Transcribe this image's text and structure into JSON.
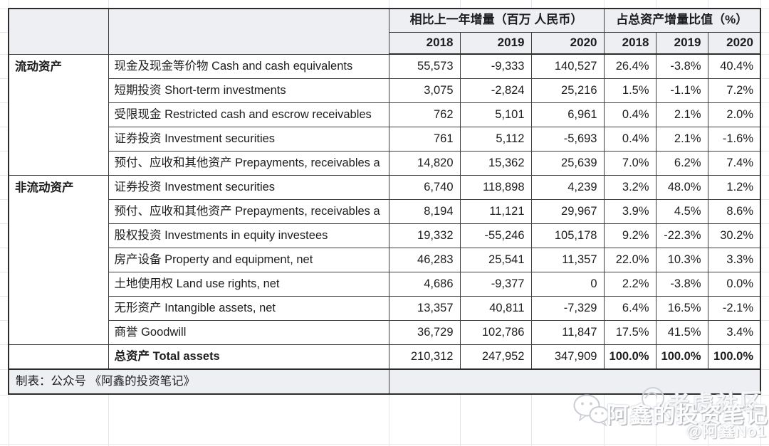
{
  "chart_data": {
    "type": "table",
    "column_groups": [
      {
        "label": "相比上一年增量（百万 人民币）",
        "span": 3
      },
      {
        "label": "占总资产增量比值（%）",
        "span": 3
      }
    ],
    "year_headers": [
      "2018",
      "2019",
      "2020",
      "2018",
      "2019",
      "2020"
    ],
    "sections": [
      {
        "name": "流动资产",
        "rows": [
          {
            "label": "现金及现金等价物 Cash and cash equivalents",
            "values": [
              "55,573",
              "-9,333",
              "140,527",
              "26.4%",
              "-3.8%",
              "40.4%"
            ]
          },
          {
            "label": "短期投资 Short-term investments",
            "values": [
              "3,075",
              "-2,824",
              "25,216",
              "1.5%",
              "-1.1%",
              "7.2%"
            ]
          },
          {
            "label": "受限现金 Restricted cash and escrow receivables",
            "values": [
              "762",
              "5,101",
              "6,961",
              "0.4%",
              "2.1%",
              "2.0%"
            ]
          },
          {
            "label": "证券投资 Investment securities",
            "values": [
              "761",
              "5,112",
              "-5,693",
              "0.4%",
              "2.1%",
              "-1.6%"
            ]
          },
          {
            "label": "预付、应收和其他资产 Prepayments, receivables a",
            "values": [
              "14,820",
              "15,362",
              "25,639",
              "7.0%",
              "6.2%",
              "7.4%"
            ]
          }
        ]
      },
      {
        "name": "非流动资产",
        "rows": [
          {
            "label": "证券投资 Investment securities",
            "values": [
              "6,740",
              "118,898",
              "4,239",
              "3.2%",
              "48.0%",
              "1.2%"
            ]
          },
          {
            "label": "预付、应收和其他资产 Prepayments, receivables a",
            "values": [
              "8,194",
              "11,121",
              "29,967",
              "3.9%",
              "4.5%",
              "8.6%"
            ]
          },
          {
            "label": "股权投资 Investments in equity investees",
            "values": [
              "19,332",
              "-55,246",
              "105,178",
              "9.2%",
              "-22.3%",
              "30.2%"
            ]
          },
          {
            "label": "房产设备 Property and equipment, net",
            "values": [
              "46,283",
              "25,541",
              "11,357",
              "22.0%",
              "10.3%",
              "3.3%"
            ]
          },
          {
            "label": "土地使用权 Land use rights, net",
            "values": [
              "4,686",
              "-9,377",
              "0",
              "2.2%",
              "-3.8%",
              "0.0%"
            ]
          },
          {
            "label": "无形资产 Intangible assets, net",
            "values": [
              "13,357",
              "40,811",
              "-7,329",
              "6.4%",
              "16.5%",
              "-2.1%"
            ]
          },
          {
            "label": "商誉 Goodwill",
            "values": [
              "36,729",
              "102,786",
              "11,847",
              "17.5%",
              "41.5%",
              "3.4%"
            ]
          }
        ]
      }
    ],
    "total": {
      "label": "总资产 Total assets",
      "values": [
        "210,312",
        "247,952",
        "347,909",
        "100.0%",
        "100.0%",
        "100.0%"
      ]
    }
  },
  "footer": {
    "credit": "制表：公众号 《阿鑫的投资笔记》"
  },
  "watermark": {
    "brand": "阿鑫的投资笔记",
    "community": "老虎社区",
    "handle": "@阿鑫No1"
  }
}
